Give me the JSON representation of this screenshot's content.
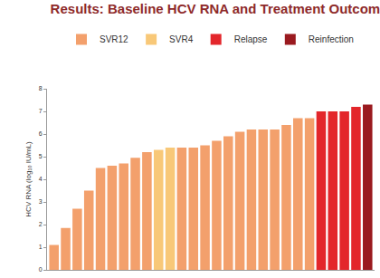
{
  "chart_data": {
    "type": "bar",
    "title": "Results: Baseline HCV RNA and Treatment Outcome (SVR)",
    "y_label": "HCV RNA (log₁₀ IU/mL)",
    "categories": [
      null,
      null,
      null,
      null,
      null,
      null,
      null,
      null,
      null,
      null,
      null,
      null,
      null,
      null,
      null,
      null,
      null,
      null,
      null,
      null,
      null,
      null,
      null,
      null,
      null,
      null,
      null,
      null
    ],
    "series": [
      {
        "name": "SVR12",
        "color": "#f3a06c",
        "values": [
          1.1,
          1.85,
          2.7,
          3.5,
          4.5,
          4.6,
          4.7,
          4.95,
          5.2,
          null,
          null,
          5.4,
          5.4,
          5.5,
          5.7,
          5.9,
          6.1,
          6.2,
          6.2,
          6.2,
          6.4,
          6.7,
          6.7,
          null,
          null,
          null,
          null,
          null
        ]
      },
      {
        "name": "SVR4",
        "color": "#f8c878",
        "values": [
          null,
          null,
          null,
          null,
          null,
          null,
          null,
          null,
          null,
          5.3,
          5.4,
          null,
          null,
          null,
          null,
          null,
          null,
          null,
          null,
          null,
          null,
          null,
          null,
          null,
          null,
          null,
          null,
          null
        ]
      },
      {
        "name": "Relapse",
        "color": "#e3262b",
        "values": [
          null,
          null,
          null,
          null,
          null,
          null,
          null,
          null,
          null,
          null,
          null,
          null,
          null,
          null,
          null,
          null,
          null,
          null,
          null,
          null,
          null,
          null,
          null,
          7.0,
          7.0,
          7.0,
          7.2,
          null
        ]
      },
      {
        "name": "Reinfection",
        "color": "#9a1a1f",
        "values": [
          null,
          null,
          null,
          null,
          null,
          null,
          null,
          null,
          null,
          null,
          null,
          null,
          null,
          null,
          null,
          null,
          null,
          null,
          null,
          null,
          null,
          null,
          null,
          null,
          null,
          null,
          null,
          7.3
        ]
      }
    ],
    "ylim": [
      0,
      8
    ],
    "yticks": [
      0,
      1,
      2,
      3,
      4,
      5,
      6,
      7,
      8
    ],
    "grid": false,
    "legend": "top",
    "tick_labels": "y"
  }
}
